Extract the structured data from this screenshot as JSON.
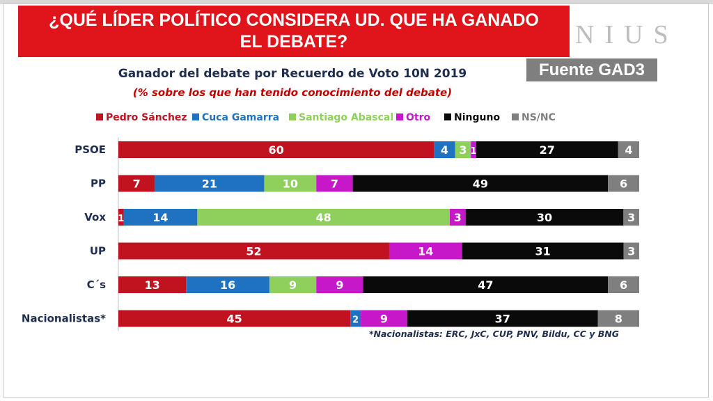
{
  "header": {
    "question": "¿QUÉ LÍDER POLÍTICO CONSIDERA UD. QUE HA GANADO EL DEBATE?",
    "brand_text": "NIUS",
    "source_label": "Fuente GAD3"
  },
  "chart_data": {
    "type": "bar",
    "orientation": "horizontal",
    "stacked": true,
    "title": "Ganador del debate por Recuerdo de Voto 10N 2019",
    "subtitle": "(% sobre los que han tenido conocimiento del debate)",
    "xlabel": "",
    "ylabel": "",
    "xlim": [
      0,
      100
    ],
    "legend_position": "top",
    "categories": [
      "PSOE",
      "PP",
      "Vox",
      "UP",
      "C´s",
      "Nacionalistas*"
    ],
    "series": [
      {
        "name": "Pedro Sánchez",
        "color": "#c0121f",
        "values": [
          60,
          7,
          1,
          52,
          13,
          45
        ]
      },
      {
        "name": "Cuca Gamarra",
        "color": "#1f72c1",
        "values": [
          4,
          21,
          14,
          0,
          16,
          2
        ]
      },
      {
        "name": "Santiago Abascal",
        "color": "#8fcf5b",
        "values": [
          3,
          10,
          48,
          0,
          9,
          0
        ]
      },
      {
        "name": "Otro",
        "color": "#c617c9",
        "values": [
          1,
          7,
          3,
          14,
          9,
          9
        ]
      },
      {
        "name": "Ninguno",
        "color": "#0a0a0a",
        "values": [
          27,
          49,
          30,
          31,
          47,
          37
        ]
      },
      {
        "name": "NS/NC",
        "color": "#7f7f7f",
        "values": [
          4,
          6,
          3,
          3,
          6,
          8
        ]
      }
    ],
    "footnote": "*Nacionalistas: ERC, JxC, CUP, PNV, Bildu, CC y BNG"
  }
}
